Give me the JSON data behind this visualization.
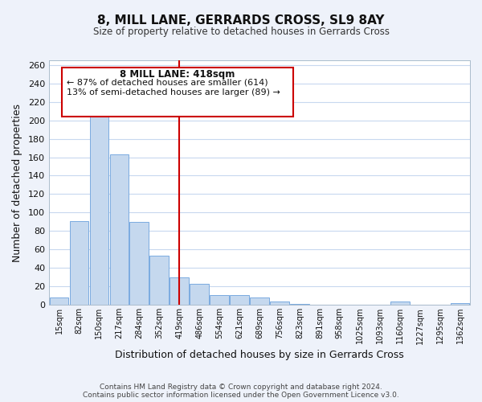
{
  "title": "8, MILL LANE, GERRARDS CROSS, SL9 8AY",
  "subtitle": "Size of property relative to detached houses in Gerrards Cross",
  "xlabel": "Distribution of detached houses by size in Gerrards Cross",
  "ylabel": "Number of detached properties",
  "bar_labels": [
    "15sqm",
    "82sqm",
    "150sqm",
    "217sqm",
    "284sqm",
    "352sqm",
    "419sqm",
    "486sqm",
    "554sqm",
    "621sqm",
    "689sqm",
    "756sqm",
    "823sqm",
    "891sqm",
    "958sqm",
    "1025sqm",
    "1093sqm",
    "1160sqm",
    "1227sqm",
    "1295sqm",
    "1362sqm"
  ],
  "bar_values": [
    8,
    91,
    214,
    163,
    90,
    53,
    30,
    23,
    11,
    11,
    8,
    4,
    1,
    0,
    0,
    0,
    0,
    4,
    0,
    0,
    2
  ],
  "bar_color": "#c5d8ee",
  "bar_edge_color": "#7aabe0",
  "marker_index": 6,
  "marker_color": "#cc0000",
  "ylim": [
    0,
    265
  ],
  "yticks": [
    0,
    20,
    40,
    60,
    80,
    100,
    120,
    140,
    160,
    180,
    200,
    220,
    240,
    260
  ],
  "annotation_title": "8 MILL LANE: 418sqm",
  "annotation_line1": "← 87% of detached houses are smaller (614)",
  "annotation_line2": "13% of semi-detached houses are larger (89) →",
  "footer_line1": "Contains HM Land Registry data © Crown copyright and database right 2024.",
  "footer_line2": "Contains public sector information licensed under the Open Government Licence v3.0.",
  "bg_color": "#eef2fa",
  "plot_bg_color": "#ffffff",
  "grid_color": "#c8d8ef"
}
